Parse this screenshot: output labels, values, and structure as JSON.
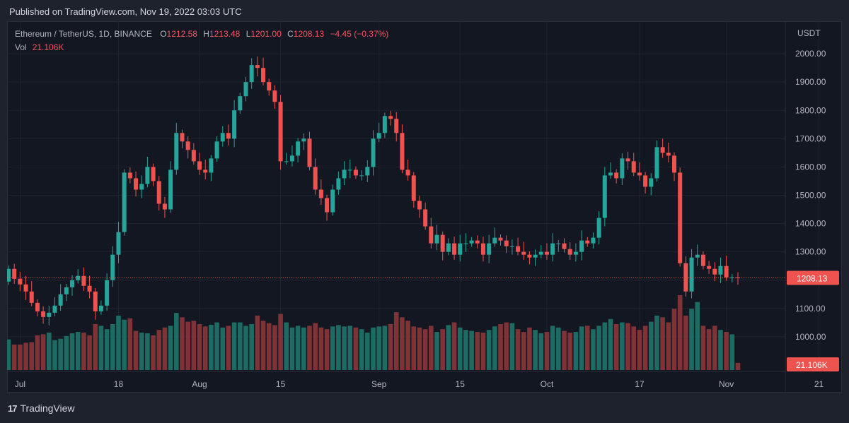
{
  "header": {
    "published": "Published on TradingView.com, Nov 19, 2022 03:03 UTC"
  },
  "legend": {
    "symbol": "Ethereum / TetherUS, 1D, BINANCE",
    "o_label": "O",
    "o_value": "1212.58",
    "h_label": "H",
    "h_value": "1213.48",
    "l_label": "L",
    "l_value": "1201.00",
    "c_label": "C",
    "c_value": "1208.13",
    "change": "−4.45 (−0.37%)",
    "vol_label": "Vol",
    "vol_value": "21.106K"
  },
  "colors": {
    "up": "#26a69a",
    "down": "#ef5350",
    "up_vol": "#1e6b64",
    "down_vol": "#7f3337",
    "bg": "#131722"
  },
  "chart_data": {
    "type": "candlestick",
    "title": "Ethereum / TetherUS, 1D, BINANCE",
    "price_axis_label": "USDT",
    "ylim": [
      880,
      2110
    ],
    "y_ticks": [
      "2000.00",
      "1900.00",
      "1800.00",
      "1700.00",
      "1600.00",
      "1500.00",
      "1400.00",
      "1300.00",
      "1200.00",
      "1100.00",
      "1000.00"
    ],
    "x_ticks": [
      "Jul",
      "18",
      "Aug",
      "15",
      "Sep",
      "15",
      "Oct",
      "17",
      "Nov",
      "21"
    ],
    "x_tick_days": [
      2,
      19,
      33,
      47,
      64,
      78,
      93,
      109,
      124,
      140
    ],
    "last_price_label": "1208.13",
    "last_price": 1208.13,
    "volume_label": "21.106K",
    "start_date": "2022-06-30",
    "closes": [
      1240,
      1205,
      1185,
      1160,
      1120,
      1090,
      1070,
      1085,
      1110,
      1150,
      1175,
      1200,
      1215,
      1180,
      1160,
      1090,
      1110,
      1200,
      1290,
      1370,
      1580,
      1560,
      1520,
      1540,
      1600,
      1550,
      1470,
      1450,
      1590,
      1720,
      1690,
      1660,
      1620,
      1590,
      1580,
      1630,
      1690,
      1720,
      1700,
      1800,
      1850,
      1900,
      1960,
      1950,
      1900,
      1870,
      1830,
      1620,
      1620,
      1640,
      1690,
      1700,
      1600,
      1520,
      1490,
      1440,
      1520,
      1560,
      1590,
      1590,
      1570,
      1570,
      1600,
      1700,
      1720,
      1780,
      1770,
      1720,
      1590,
      1570,
      1480,
      1450,
      1390,
      1330,
      1360,
      1300,
      1330,
      1290,
      1330,
      1330,
      1340,
      1330,
      1290,
      1330,
      1350,
      1340,
      1320,
      1320,
      1300,
      1290,
      1280,
      1290,
      1300,
      1290,
      1330,
      1330,
      1310,
      1290,
      1300,
      1340,
      1330,
      1350,
      1420,
      1570,
      1580,
      1560,
      1630,
      1620,
      1580,
      1570,
      1530,
      1560,
      1670,
      1650,
      1640,
      1580,
      1260,
      1160,
      1280,
      1290,
      1250,
      1240,
      1220,
      1250,
      1210,
      1210,
      1208
    ],
    "volumes_k": [
      90,
      75,
      75,
      80,
      82,
      102,
      105,
      110,
      88,
      92,
      100,
      108,
      112,
      110,
      102,
      135,
      130,
      120,
      135,
      160,
      148,
      152,
      115,
      110,
      108,
      102,
      118,
      125,
      130,
      168,
      155,
      142,
      145,
      135,
      128,
      133,
      140,
      125,
      130,
      140,
      140,
      130,
      135,
      160,
      145,
      138,
      132,
      165,
      140,
      125,
      130,
      125,
      130,
      138,
      125,
      120,
      128,
      132,
      128,
      130,
      125,
      120,
      110,
      125,
      128,
      130,
      135,
      170,
      155,
      145,
      128,
      125,
      120,
      130,
      112,
      120,
      132,
      140,
      125,
      118,
      115,
      112,
      110,
      118,
      128,
      135,
      140,
      138,
      120,
      112,
      125,
      118,
      108,
      112,
      130,
      125,
      115,
      110,
      112,
      128,
      130,
      120,
      130,
      140,
      150,
      135,
      140,
      138,
      128,
      118,
      130,
      142,
      160,
      155,
      140,
      180,
      220,
      160,
      180,
      200,
      130,
      120,
      130,
      118,
      112,
      105,
      21
    ]
  }
}
